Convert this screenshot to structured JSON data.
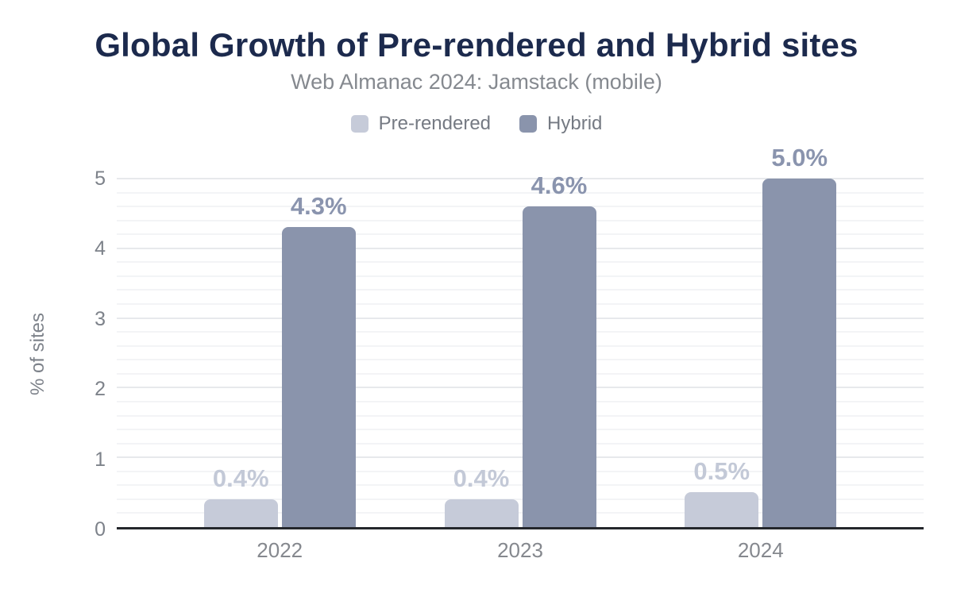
{
  "chart_data": {
    "type": "bar",
    "title": "Global Growth of Pre-rendered and Hybrid sites",
    "subtitle": "Web Almanac 2024: Jamstack (mobile)",
    "xlabel": "",
    "ylabel": "% of sites",
    "categories": [
      "2022",
      "2023",
      "2024"
    ],
    "series": [
      {
        "name": "Pre-rendered",
        "color": "#c6cbd9",
        "label_color": "#c3c9d7",
        "values": [
          0.4,
          0.4,
          0.5
        ],
        "labels": [
          "0.4%",
          "0.4%",
          "0.5%"
        ]
      },
      {
        "name": "Hybrid",
        "color": "#8a94ac",
        "label_color": "#8a94ae",
        "values": [
          4.3,
          4.6,
          5.0
        ],
        "labels": [
          "4.3%",
          "4.6%",
          "5.0%"
        ]
      }
    ],
    "ylim": [
      0,
      5
    ],
    "yticks": [
      0,
      1,
      2,
      3,
      4,
      5
    ],
    "grid": {
      "minor_step": 0.2,
      "major_step": 1,
      "visible": true
    },
    "legend_position": "top",
    "group_centers_pct": [
      20.2,
      50,
      79.8
    ]
  },
  "colors": {
    "background": "#ffffff",
    "title": "#1c2a4d",
    "subtitle": "#85898f",
    "axis_line": "#24272c",
    "tick_label": "#7d828a",
    "gridline_minor": "#f3f4f6",
    "gridline_major": "#e7e9ec"
  }
}
